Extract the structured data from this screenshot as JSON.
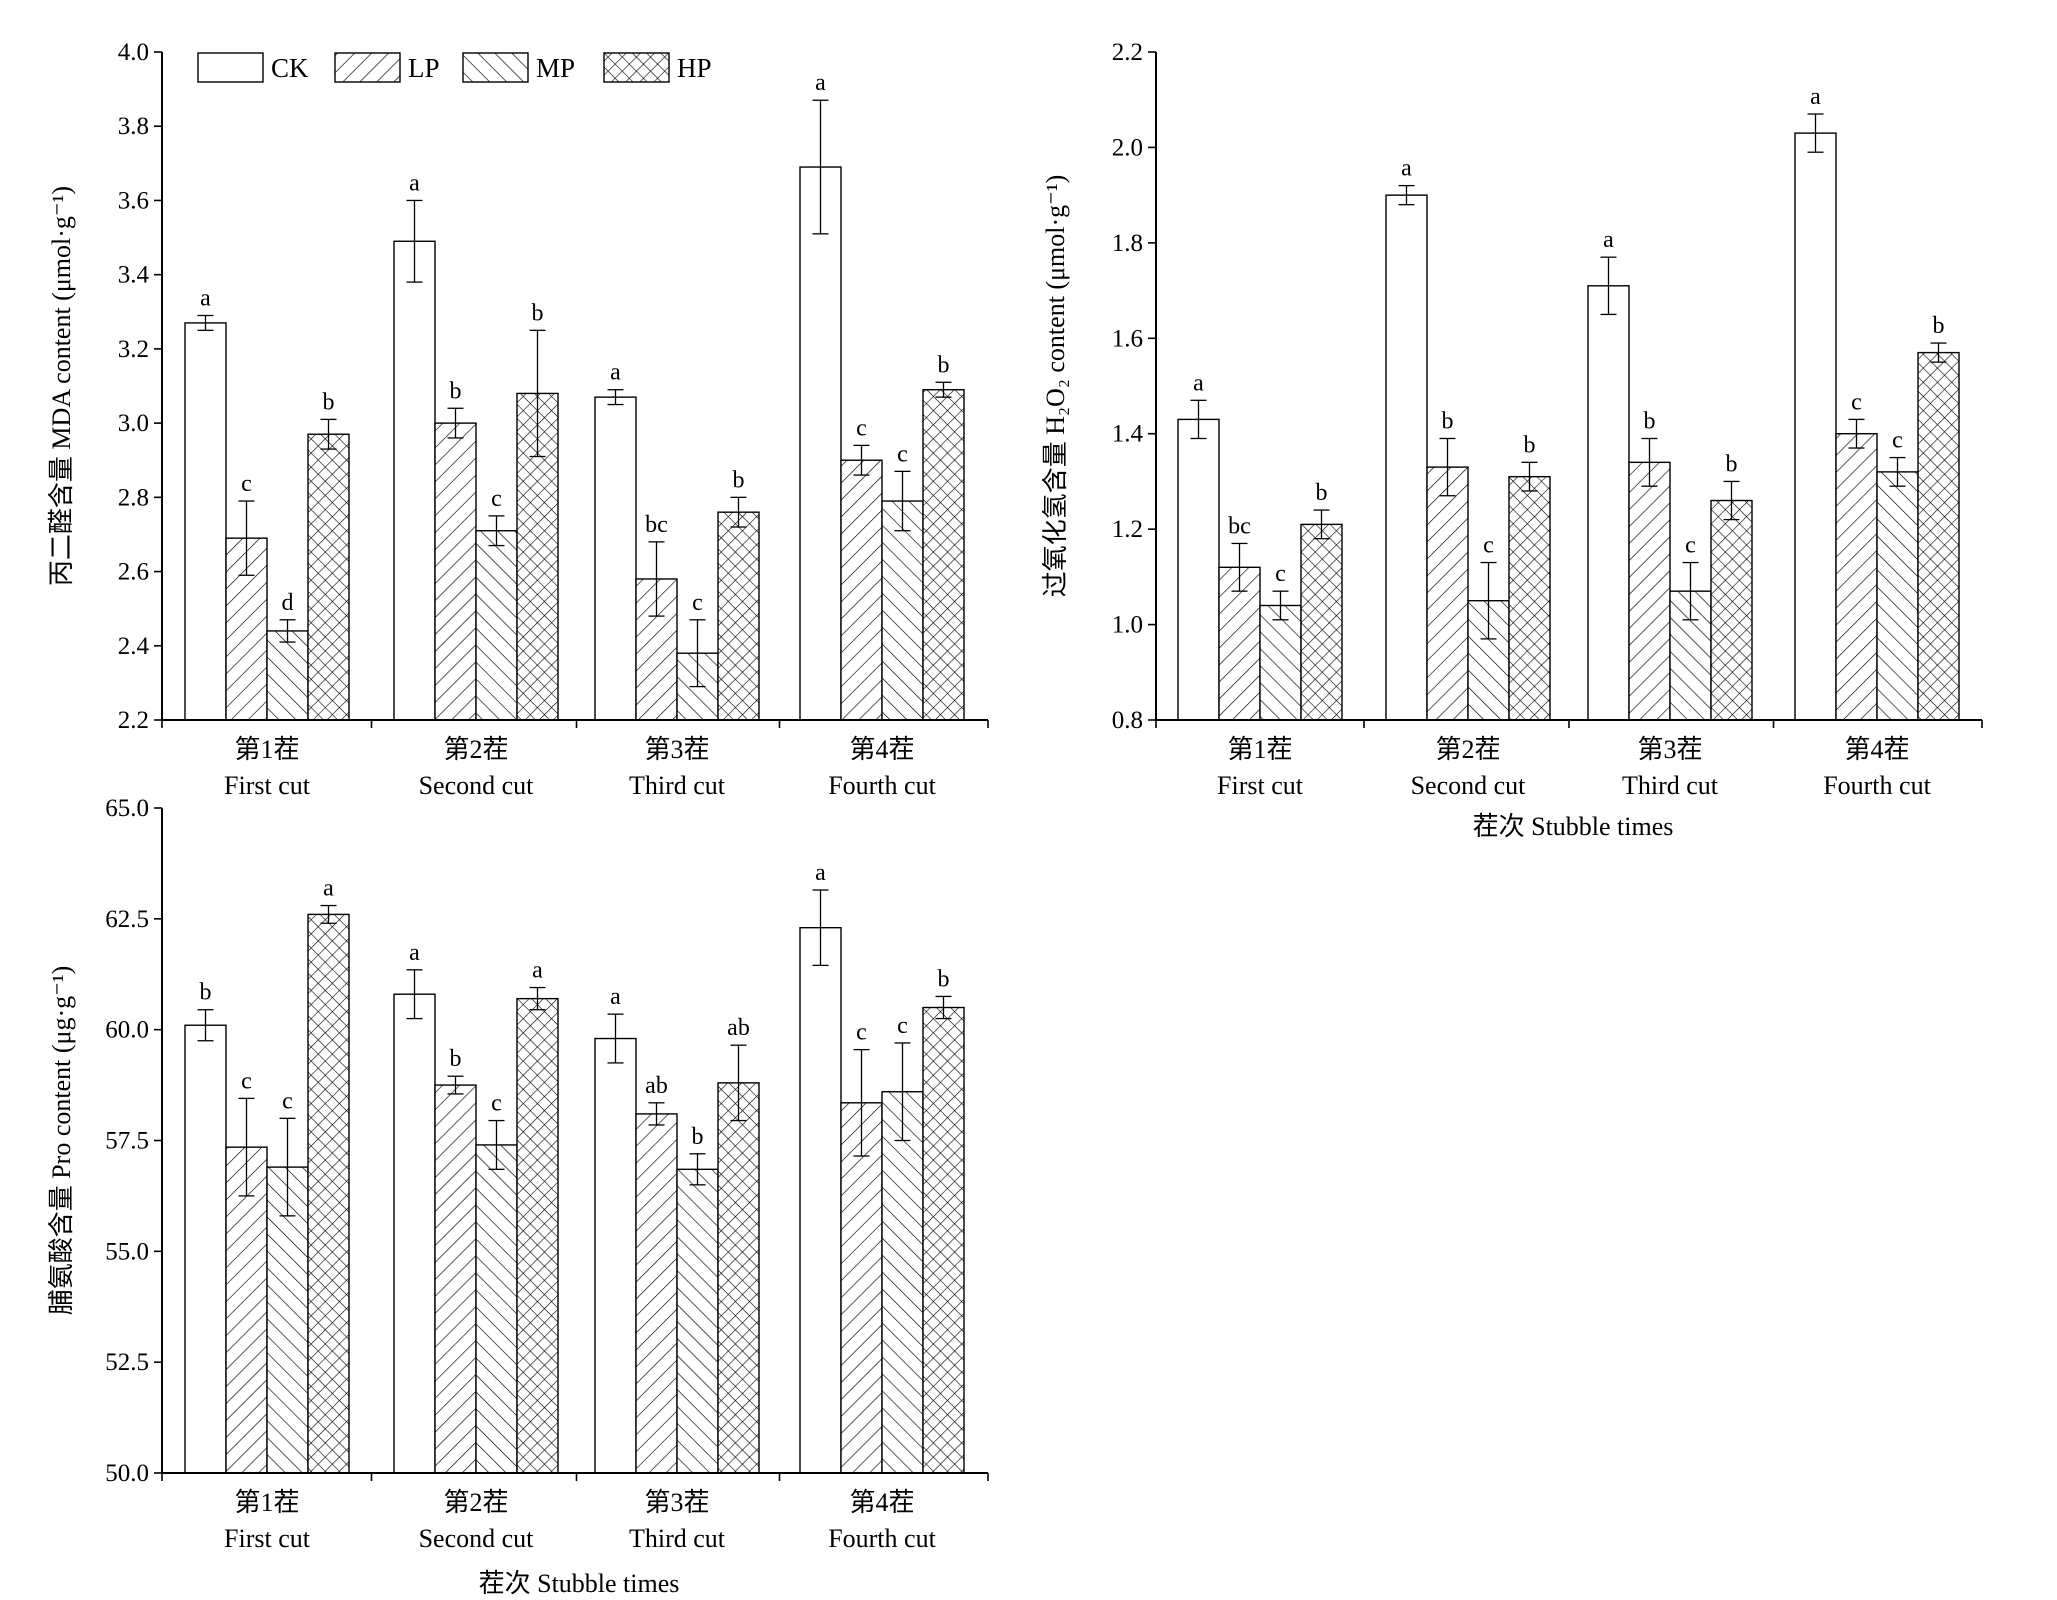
{
  "legend": [
    {
      "key": "CK",
      "label": "CK",
      "pattern": "none"
    },
    {
      "key": "LP",
      "label": "LP",
      "pattern": "diag-right"
    },
    {
      "key": "MP",
      "label": "MP",
      "pattern": "diag-left"
    },
    {
      "key": "HP",
      "label": "HP",
      "pattern": "cross"
    }
  ],
  "categories": [
    {
      "zh": "第1茬",
      "en": "First cut"
    },
    {
      "zh": "第2茬",
      "en": "Second cut"
    },
    {
      "zh": "第3茬",
      "en": "Third cut"
    },
    {
      "zh": "第4茬",
      "en": "Fourth cut"
    }
  ],
  "x_title": "茬次 Stubble times",
  "chart_data": [
    {
      "type": "bar",
      "ylabel": "丙二醛含量 MDA content (μmol·g⁻¹)",
      "ylim": [
        2.2,
        4.0
      ],
      "yticks": [
        "2.2",
        "2.4",
        "2.6",
        "2.8",
        "3.0",
        "3.2",
        "3.4",
        "3.6",
        "3.8",
        "4.0"
      ],
      "grid": false,
      "legend": "top-left",
      "show_x_title": false,
      "series": [
        {
          "name": "CK",
          "values": [
            3.27,
            3.49,
            3.07,
            3.69
          ],
          "errors": [
            0.02,
            0.11,
            0.02,
            0.18
          ],
          "letters": [
            "a",
            "a",
            "a",
            "a"
          ]
        },
        {
          "name": "LP",
          "values": [
            2.69,
            3.0,
            2.58,
            2.9
          ],
          "errors": [
            0.1,
            0.04,
            0.1,
            0.04
          ],
          "letters": [
            "c",
            "b",
            "bc",
            "c"
          ]
        },
        {
          "name": "MP",
          "values": [
            2.44,
            2.71,
            2.38,
            2.79
          ],
          "errors": [
            0.03,
            0.04,
            0.09,
            0.08
          ],
          "letters": [
            "d",
            "c",
            "c",
            "c"
          ]
        },
        {
          "name": "HP",
          "values": [
            2.97,
            3.08,
            2.76,
            3.09
          ],
          "errors": [
            0.04,
            0.17,
            0.04,
            0.02
          ],
          "letters": [
            "b",
            "b",
            "b",
            "b"
          ]
        }
      ]
    },
    {
      "type": "bar",
      "ylabel": "过氧化氢含量 H₂O₂ content (μmol·g⁻¹)",
      "ylim": [
        0.8,
        2.2
      ],
      "yticks": [
        "0.8",
        "1.0",
        "1.2",
        "1.4",
        "1.6",
        "1.8",
        "2.0",
        "2.2"
      ],
      "grid": false,
      "show_x_title": true,
      "series": [
        {
          "name": "CK",
          "values": [
            1.43,
            1.9,
            1.71,
            2.03
          ],
          "errors": [
            0.04,
            0.02,
            0.06,
            0.04
          ],
          "letters": [
            "a",
            "a",
            "a",
            "a"
          ]
        },
        {
          "name": "LP",
          "values": [
            1.12,
            1.33,
            1.34,
            1.4
          ],
          "errors": [
            0.05,
            0.06,
            0.05,
            0.03
          ],
          "letters": [
            "bc",
            "b",
            "b",
            "c"
          ]
        },
        {
          "name": "MP",
          "values": [
            1.04,
            1.05,
            1.07,
            1.32
          ],
          "errors": [
            0.03,
            0.08,
            0.06,
            0.03
          ],
          "letters": [
            "c",
            "c",
            "c",
            "c"
          ]
        },
        {
          "name": "HP",
          "values": [
            1.21,
            1.31,
            1.26,
            1.57
          ],
          "errors": [
            0.03,
            0.03,
            0.04,
            0.02
          ],
          "letters": [
            "b",
            "b",
            "b",
            "b"
          ]
        }
      ]
    },
    {
      "type": "bar",
      "ylabel": "脯氨酸含量 Pro content (μg·g⁻¹)",
      "ylim": [
        50.0,
        65.0
      ],
      "yticks": [
        "50.0",
        "52.5",
        "55.0",
        "57.5",
        "60.0",
        "62.5",
        "65.0"
      ],
      "grid": false,
      "show_x_title": true,
      "series": [
        {
          "name": "CK",
          "values": [
            60.1,
            60.8,
            59.8,
            62.3
          ],
          "errors": [
            0.35,
            0.55,
            0.55,
            0.85
          ],
          "letters": [
            "b",
            "a",
            "a",
            "a"
          ]
        },
        {
          "name": "LP",
          "values": [
            57.35,
            58.75,
            58.1,
            58.35
          ],
          "errors": [
            1.1,
            0.2,
            0.25,
            1.2
          ],
          "letters": [
            "c",
            "b",
            "ab",
            "c"
          ]
        },
        {
          "name": "MP",
          "values": [
            56.9,
            57.4,
            56.85,
            58.6
          ],
          "errors": [
            1.1,
            0.55,
            0.35,
            1.1
          ],
          "letters": [
            "c",
            "c",
            "b",
            "c"
          ]
        },
        {
          "name": "HP",
          "values": [
            62.6,
            60.7,
            58.8,
            60.5
          ],
          "errors": [
            0.2,
            0.25,
            0.85,
            0.25
          ],
          "letters": [
            "a",
            "a",
            "ab",
            "b"
          ]
        }
      ]
    }
  ]
}
